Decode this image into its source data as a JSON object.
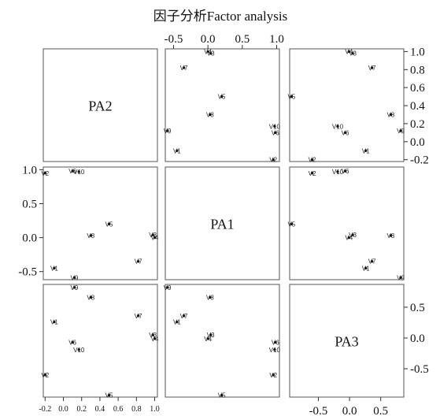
{
  "chart_data": {
    "type": "scatter-matrix",
    "title": "因子分析Factor analysis",
    "variables": [
      "PA2",
      "PA1",
      "PA3"
    ],
    "points": [
      {
        "label": "V1",
        "PA2": -0.1,
        "PA1": -0.45,
        "PA3": 0.26
      },
      {
        "label": "V2",
        "PA2": -0.2,
        "PA1": 0.95,
        "PA3": -0.6
      },
      {
        "label": "V3",
        "PA2": 0.98,
        "PA1": 0.04,
        "PA3": 0.05
      },
      {
        "label": "V4",
        "PA2": 1.0,
        "PA1": 0.0,
        "PA3": -0.01
      },
      {
        "label": "V5",
        "PA2": 0.5,
        "PA1": 0.2,
        "PA3": -0.93
      },
      {
        "label": "V6",
        "PA2": 0.1,
        "PA1": 0.98,
        "PA3": -0.07
      },
      {
        "label": "V7",
        "PA2": 0.82,
        "PA1": -0.35,
        "PA3": 0.36
      },
      {
        "label": "V8",
        "PA2": 0.3,
        "PA1": 0.03,
        "PA3": 0.66
      },
      {
        "label": "V9",
        "PA2": 0.12,
        "PA1": -0.59,
        "PA3": 0.82
      },
      {
        "label": "V10",
        "PA2": 0.17,
        "PA1": 0.97,
        "PA3": -0.19
      }
    ],
    "axes": {
      "PA2": {
        "ticks": [
          -0.2,
          0.0,
          0.2,
          0.4,
          0.6,
          0.8,
          1.0
        ],
        "tick_labels": [
          "-0.2",
          "0.0",
          "0.2",
          "0.4",
          "0.6",
          "0.8",
          "1.0"
        ],
        "range": [
          -0.22,
          1.03
        ]
      },
      "PA1": {
        "ticks": [
          -0.5,
          0.0,
          0.5,
          1.0
        ],
        "tick_labels": [
          "-0.5",
          "0.0",
          "0.5",
          "1.0"
        ],
        "range": [
          -0.62,
          1.04
        ]
      },
      "PA3": {
        "ticks": [
          -0.5,
          0.0,
          0.5
        ],
        "tick_labels": [
          "-0.5",
          "0.0",
          "0.5"
        ],
        "range": [
          -0.96,
          0.87
        ]
      }
    },
    "grid": false
  }
}
